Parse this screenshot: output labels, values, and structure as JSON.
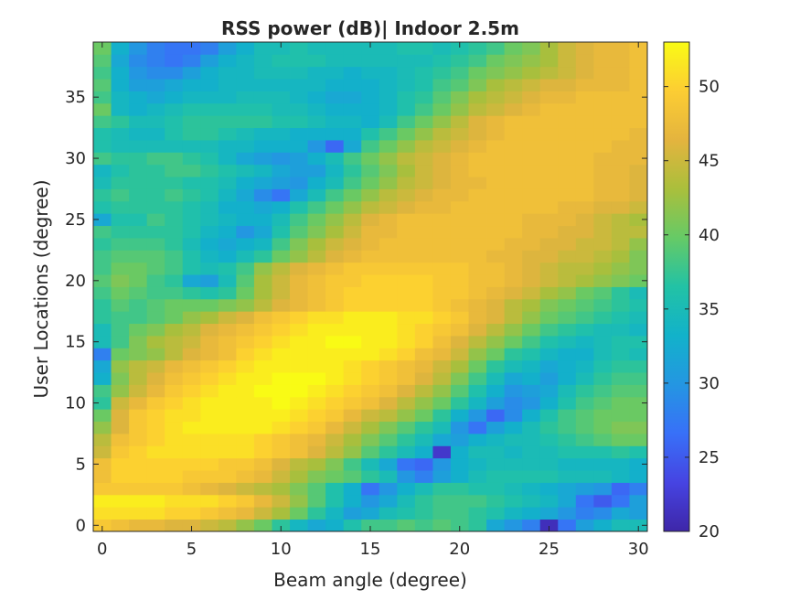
{
  "chart_data": {
    "type": "heatmap",
    "title": "RSS power (dB)| Indoor 2.5m",
    "xlabel": "Beam angle (degree)",
    "ylabel": "User Locations (degree)",
    "x": [
      0,
      1,
      2,
      3,
      4,
      5,
      6,
      7,
      8,
      9,
      10,
      11,
      12,
      13,
      14,
      15,
      16,
      17,
      18,
      19,
      20,
      21,
      22,
      23,
      24,
      25,
      26,
      27,
      28,
      29,
      30
    ],
    "y": [
      0,
      1,
      2,
      3,
      4,
      5,
      6,
      7,
      8,
      9,
      10,
      11,
      12,
      13,
      14,
      15,
      16,
      17,
      18,
      19,
      20,
      21,
      22,
      23,
      24,
      25,
      26,
      27,
      28,
      29,
      30,
      31,
      32,
      33,
      34,
      35,
      36,
      37,
      38,
      39
    ],
    "xlim": [
      -0.5,
      30.5
    ],
    "ylim": [
      -0.5,
      39.5
    ],
    "xticks": [
      0,
      5,
      10,
      15,
      20,
      25,
      30
    ],
    "xtick_labels": [
      "0",
      "5",
      "10",
      "15",
      "20",
      "25",
      "30"
    ],
    "yticks": [
      0,
      5,
      10,
      15,
      20,
      25,
      30,
      35
    ],
    "ytick_labels": [
      "0",
      "5",
      "10",
      "15",
      "20",
      "25",
      "30",
      "35"
    ],
    "colorbar": {
      "colormap": "parula",
      "limits": [
        20,
        53
      ],
      "ticks": [
        20,
        25,
        30,
        35,
        40,
        45,
        50
      ],
      "tick_labels": [
        "20",
        "25",
        "30",
        "35",
        "40",
        "45",
        "50"
      ]
    },
    "grid": false,
    "values": [
      [
        49,
        48,
        47,
        47,
        46,
        46,
        45,
        44,
        42,
        40,
        37,
        34,
        32,
        33,
        36,
        38,
        38,
        39,
        38,
        39,
        38,
        37,
        32,
        30,
        28,
        21,
        27,
        31,
        33,
        35,
        35
      ],
      [
        51,
        51,
        51,
        51,
        50,
        50,
        49,
        48,
        47,
        45,
        43,
        40,
        37,
        34,
        31,
        32,
        35,
        36,
        37,
        38,
        38,
        37,
        36,
        34,
        33,
        32,
        30,
        28,
        29,
        32,
        31
      ],
      [
        52,
        52,
        52,
        52,
        51,
        51,
        51,
        50,
        49,
        47,
        45,
        42,
        39,
        36,
        33,
        30,
        32,
        35,
        37,
        38,
        38,
        38,
        37,
        36,
        35,
        34,
        32,
        27,
        25,
        27,
        31
      ],
      [
        49,
        49,
        49,
        49,
        49,
        48,
        47,
        46,
        45,
        44,
        43,
        41,
        39,
        36,
        33,
        27,
        30,
        33,
        35,
        37,
        37,
        36,
        36,
        35,
        34,
        33,
        32,
        31,
        30,
        26,
        28
      ],
      [
        48,
        50,
        50,
        50,
        50,
        49,
        49,
        49,
        48,
        47,
        45,
        43,
        41,
        40,
        39,
        37,
        35,
        30,
        28,
        31,
        33,
        35,
        36,
        36,
        36,
        36,
        35,
        35,
        35,
        34,
        33
      ],
      [
        48,
        50,
        50,
        50,
        50,
        50,
        50,
        49,
        49,
        48,
        46,
        44,
        43,
        41,
        38,
        35,
        32,
        27,
        26,
        30,
        33,
        34,
        35,
        35,
        35,
        35,
        34,
        34,
        34,
        34,
        33
      ],
      [
        45,
        49,
        50,
        51,
        51,
        51,
        51,
        51,
        51,
        50,
        49,
        48,
        46,
        44,
        42,
        39,
        37,
        35,
        33,
        22,
        33,
        35,
        35,
        34,
        35,
        35,
        36,
        36,
        36,
        37,
        36
      ],
      [
        44,
        48,
        49,
        50,
        51,
        51,
        51,
        51,
        51,
        50,
        49,
        48,
        47,
        45,
        43,
        41,
        39,
        37,
        35,
        32,
        31,
        33,
        34,
        35,
        35,
        36,
        37,
        38,
        39,
        40,
        40
      ],
      [
        42,
        46,
        49,
        50,
        51,
        52,
        52,
        52,
        52,
        52,
        51,
        50,
        49,
        47,
        45,
        43,
        41,
        39,
        37,
        35,
        30,
        27,
        31,
        33,
        35,
        37,
        38,
        39,
        40,
        41,
        41
      ],
      [
        40,
        46,
        49,
        50,
        51,
        51,
        52,
        52,
        52,
        52,
        52,
        51,
        50,
        49,
        47,
        45,
        44,
        42,
        40,
        37,
        33,
        30,
        26,
        29,
        33,
        36,
        38,
        39,
        40,
        40,
        40
      ],
      [
        37,
        45,
        47,
        49,
        50,
        51,
        52,
        52,
        52,
        52,
        53,
        52,
        51,
        50,
        49,
        48,
        46,
        44,
        42,
        40,
        37,
        34,
        31,
        29,
        30,
        33,
        36,
        38,
        39,
        40,
        40
      ],
      [
        38,
        42,
        45,
        47,
        49,
        50,
        51,
        52,
        52,
        53,
        53,
        53,
        52,
        51,
        50,
        49,
        48,
        46,
        44,
        42,
        39,
        36,
        33,
        30,
        31,
        32,
        35,
        37,
        38,
        39,
        39
      ],
      [
        33,
        41,
        44,
        46,
        48,
        49,
        50,
        51,
        52,
        52,
        53,
        53,
        53,
        52,
        51,
        50,
        49,
        48,
        46,
        44,
        41,
        38,
        35,
        32,
        33,
        31,
        33,
        35,
        37,
        38,
        38
      ],
      [
        32,
        42,
        44,
        45,
        47,
        48,
        49,
        50,
        51,
        52,
        52,
        52,
        52,
        52,
        51,
        50,
        49,
        48,
        47,
        45,
        43,
        40,
        37,
        35,
        34,
        32,
        33,
        34,
        36,
        37,
        37
      ],
      [
        28,
        40,
        41,
        42,
        44,
        46,
        47,
        48,
        50,
        51,
        52,
        52,
        52,
        52,
        52,
        52,
        51,
        50,
        48,
        47,
        45,
        42,
        40,
        37,
        36,
        34,
        33,
        33,
        35,
        36,
        35
      ],
      [
        35,
        38,
        41,
        43,
        44,
        45,
        47,
        48,
        49,
        50,
        51,
        52,
        52,
        53,
        53,
        52,
        52,
        51,
        50,
        48,
        46,
        44,
        42,
        40,
        38,
        36,
        35,
        34,
        35,
        36,
        36
      ],
      [
        35,
        38,
        40,
        41,
        43,
        44,
        46,
        47,
        48,
        49,
        50,
        51,
        52,
        52,
        52,
        52,
        52,
        51,
        50,
        49,
        48,
        46,
        44,
        42,
        40,
        38,
        37,
        36,
        35,
        35,
        34
      ],
      [
        37,
        38,
        38,
        39,
        40,
        42,
        43,
        45,
        46,
        48,
        49,
        50,
        51,
        51,
        52,
        52,
        52,
        51,
        51,
        50,
        49,
        47,
        46,
        44,
        42,
        40,
        39,
        38,
        37,
        36,
        35
      ],
      [
        37,
        39,
        38,
        39,
        40,
        40,
        40,
        41,
        42,
        44,
        46,
        47,
        48,
        49,
        50,
        50,
        50,
        50,
        50,
        49,
        48,
        47,
        46,
        44,
        43,
        41,
        40,
        39,
        38,
        37,
        36
      ],
      [
        38,
        40,
        39,
        38,
        38,
        37,
        36,
        37,
        40,
        43,
        45,
        47,
        48,
        49,
        50,
        50,
        50,
        50,
        50,
        49,
        49,
        48,
        47,
        46,
        45,
        43,
        42,
        40,
        39,
        37,
        35
      ],
      [
        39,
        41,
        40,
        38,
        37,
        32,
        31,
        35,
        39,
        43,
        45,
        47,
        48,
        49,
        49,
        50,
        50,
        50,
        50,
        49,
        49,
        48,
        48,
        47,
        46,
        45,
        44,
        43,
        42,
        41,
        40
      ],
      [
        38,
        40,
        40,
        39,
        38,
        36,
        35,
        36,
        38,
        42,
        44,
        46,
        47,
        48,
        49,
        49,
        49,
        49,
        49,
        49,
        49,
        48,
        48,
        47,
        46,
        45,
        44,
        44,
        43,
        42,
        41
      ],
      [
        38,
        39,
        39,
        39,
        38,
        36,
        34,
        33,
        35,
        37,
        40,
        42,
        44,
        46,
        47,
        48,
        48,
        48,
        48,
        48,
        48,
        48,
        47,
        47,
        46,
        46,
        45,
        45,
        44,
        43,
        41
      ],
      [
        37,
        38,
        38,
        38,
        37,
        35,
        33,
        32,
        33,
        34,
        38,
        41,
        43,
        45,
        46,
        47,
        48,
        48,
        48,
        48,
        48,
        48,
        48,
        47,
        47,
        46,
        46,
        45,
        45,
        44,
        42
      ],
      [
        38,
        37,
        37,
        37,
        37,
        36,
        34,
        33,
        30,
        32,
        36,
        39,
        41,
        43,
        45,
        47,
        47,
        48,
        48,
        48,
        48,
        48,
        48,
        48,
        47,
        47,
        46,
        46,
        45,
        44,
        44
      ],
      [
        32,
        36,
        36,
        38,
        37,
        36,
        35,
        34,
        33,
        33,
        35,
        38,
        40,
        42,
        44,
        46,
        47,
        48,
        48,
        48,
        48,
        48,
        48,
        48,
        47,
        47,
        47,
        46,
        45,
        44,
        43
      ],
      [
        36,
        37,
        37,
        37,
        37,
        36,
        35,
        33,
        33,
        32,
        33,
        36,
        38,
        40,
        42,
        44,
        45,
        46,
        47,
        47,
        48,
        48,
        48,
        48,
        48,
        48,
        47,
        47,
        46,
        46,
        45
      ],
      [
        37,
        38,
        37,
        37,
        38,
        37,
        36,
        34,
        32,
        29,
        27,
        32,
        35,
        38,
        40,
        42,
        44,
        45,
        46,
        47,
        47,
        48,
        48,
        48,
        48,
        48,
        48,
        48,
        47,
        47,
        46
      ],
      [
        35,
        37,
        37,
        37,
        37,
        36,
        36,
        35,
        33,
        32,
        31,
        30,
        33,
        35,
        38,
        40,
        42,
        44,
        45,
        46,
        47,
        47,
        48,
        48,
        48,
        48,
        48,
        48,
        47,
        47,
        46
      ],
      [
        34,
        36,
        37,
        37,
        38,
        38,
        37,
        36,
        35,
        34,
        32,
        31,
        31,
        34,
        37,
        39,
        41,
        43,
        45,
        46,
        47,
        48,
        48,
        48,
        48,
        48,
        48,
        48,
        47,
        47,
        46
      ],
      [
        38,
        37,
        37,
        38,
        38,
        37,
        36,
        34,
        32,
        31,
        30,
        31,
        33,
        35,
        38,
        40,
        42,
        44,
        45,
        46,
        47,
        48,
        48,
        48,
        48,
        48,
        48,
        48,
        47,
        47,
        47
      ],
      [
        36,
        35,
        35,
        35,
        35,
        35,
        35,
        34,
        34,
        33,
        33,
        33,
        30,
        26,
        32,
        38,
        40,
        42,
        44,
        45,
        46,
        47,
        48,
        48,
        48,
        48,
        48,
        48,
        48,
        47,
        47
      ],
      [
        36,
        35,
        34,
        34,
        36,
        37,
        37,
        36,
        35,
        34,
        34,
        33,
        33,
        33,
        33,
        36,
        38,
        40,
        42,
        44,
        45,
        46,
        47,
        48,
        48,
        48,
        48,
        48,
        48,
        48,
        47
      ],
      [
        38,
        37,
        35,
        35,
        36,
        37,
        37,
        37,
        37,
        37,
        36,
        36,
        35,
        34,
        34,
        33,
        35,
        38,
        40,
        42,
        44,
        46,
        47,
        48,
        48,
        48,
        48,
        48,
        48,
        48,
        48
      ],
      [
        40,
        34,
        33,
        34,
        35,
        36,
        36,
        36,
        36,
        36,
        35,
        35,
        34,
        33,
        33,
        33,
        34,
        36,
        38,
        40,
        42,
        44,
        45,
        46,
        47,
        48,
        48,
        48,
        48,
        48,
        48
      ],
      [
        38,
        34,
        33,
        32,
        33,
        34,
        34,
        34,
        35,
        35,
        35,
        34,
        33,
        32,
        32,
        33,
        34,
        36,
        37,
        39,
        41,
        43,
        44,
        45,
        46,
        47,
        47,
        48,
        48,
        48,
        48
      ],
      [
        39,
        33,
        31,
        31,
        32,
        33,
        33,
        34,
        34,
        34,
        34,
        34,
        34,
        33,
        33,
        33,
        34,
        35,
        36,
        38,
        39,
        41,
        43,
        44,
        45,
        46,
        46,
        47,
        47,
        47,
        48
      ],
      [
        38,
        33,
        30,
        29,
        29,
        31,
        33,
        34,
        34,
        35,
        35,
        35,
        34,
        34,
        33,
        34,
        34,
        35,
        36,
        37,
        38,
        40,
        41,
        42,
        43,
        44,
        45,
        46,
        47,
        47,
        48
      ],
      [
        39,
        32,
        29,
        28,
        27,
        28,
        31,
        33,
        34,
        35,
        36,
        36,
        36,
        35,
        35,
        35,
        35,
        35,
        35,
        36,
        37,
        38,
        40,
        41,
        42,
        43,
        45,
        46,
        47,
        47,
        48
      ],
      [
        40,
        33,
        30,
        28,
        27,
        27,
        28,
        31,
        33,
        35,
        35,
        36,
        35,
        35,
        35,
        35,
        35,
        36,
        36,
        35,
        36,
        37,
        38,
        40,
        41,
        43,
        45,
        46,
        47,
        47,
        48
      ]
    ]
  }
}
